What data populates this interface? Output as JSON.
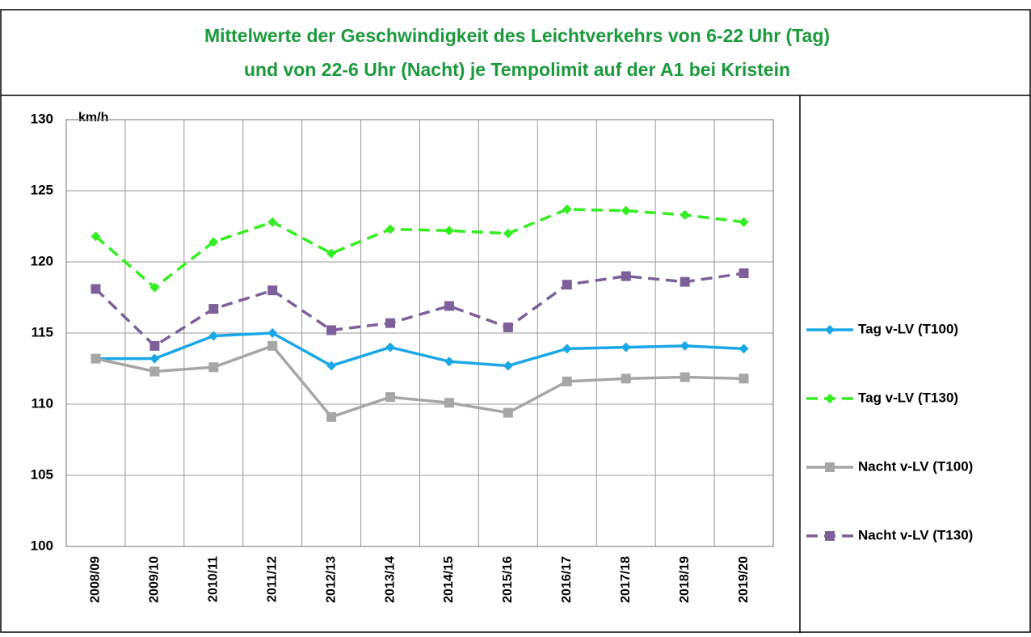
{
  "chart_data": {
    "type": "line",
    "title": [
      "Mittelwerte der Geschwindigkeit des Leichtverkehrs von 6-22 Uhr (Tag)",
      "und von 22-6 Uhr (Nacht) je Tempolimit auf der A1 bei Kristein"
    ],
    "y_label": "km/h",
    "categories": [
      "2008/09",
      "2009/10",
      "2010/11",
      "2011/12",
      "2012/13",
      "2013/14",
      "2014/15",
      "2015/16",
      "2016/17",
      "2017/18",
      "2018/19",
      "2019/20"
    ],
    "series": [
      {
        "name": "Tag v-LV (T100)",
        "color": "#1aa7e8",
        "line_style": "solid",
        "marker": "diamond",
        "values": [
          113.2,
          113.2,
          114.8,
          115.0,
          112.7,
          114.0,
          113.0,
          112.7,
          113.9,
          114.0,
          114.1,
          113.9
        ]
      },
      {
        "name": "Tag v-LV (T130)",
        "color": "#33ee22",
        "line_style": "dashed",
        "marker": "diamond",
        "values": [
          121.8,
          118.2,
          121.4,
          122.8,
          120.6,
          122.3,
          122.2,
          122.0,
          123.7,
          123.6,
          123.3,
          122.8
        ]
      },
      {
        "name": "Nacht v-LV (T100)",
        "color": "#a6a6a6",
        "line_style": "solid",
        "marker": "square",
        "values": [
          113.2,
          112.3,
          112.6,
          114.1,
          109.1,
          110.5,
          110.1,
          109.4,
          111.6,
          111.8,
          111.9,
          111.8
        ]
      },
      {
        "name": "Nacht v-LV (T130)",
        "color": "#7d5f9a",
        "line_style": "dashed",
        "marker": "square",
        "values": [
          118.1,
          114.1,
          116.7,
          118.0,
          115.2,
          115.7,
          116.9,
          115.4,
          118.4,
          119.0,
          118.6,
          119.2
        ]
      }
    ],
    "ylim": [
      100,
      130
    ],
    "yticks": [
      100,
      105,
      110,
      115,
      120,
      125,
      130
    ],
    "grid": true,
    "legend": "right"
  }
}
